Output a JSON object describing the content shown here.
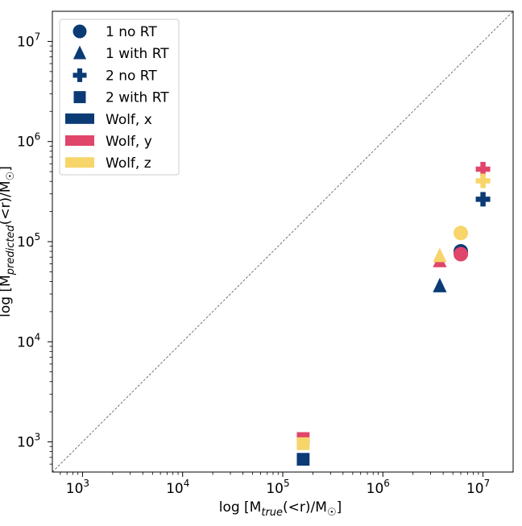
{
  "chart_data": {
    "type": "scatter",
    "xscale": "log",
    "yscale": "log",
    "xlim": [
      500,
      20000000
    ],
    "ylim": [
      500,
      20000000
    ],
    "grid": false,
    "legend_position": "top-left",
    "x_ticks": [
      {
        "value": 1000,
        "base": "10",
        "exp": "3"
      },
      {
        "value": 10000,
        "base": "10",
        "exp": "4"
      },
      {
        "value": 100000,
        "base": "10",
        "exp": "5"
      },
      {
        "value": 1000000,
        "base": "10",
        "exp": "6"
      },
      {
        "value": 10000000,
        "base": "10",
        "exp": "7"
      }
    ],
    "y_ticks": [
      {
        "value": 1000,
        "base": "10",
        "exp": "3"
      },
      {
        "value": 10000,
        "base": "10",
        "exp": "4"
      },
      {
        "value": 100000,
        "base": "10",
        "exp": "5"
      },
      {
        "value": 1000000,
        "base": "10",
        "exp": "6"
      },
      {
        "value": 10000000,
        "base": "10",
        "exp": "7"
      }
    ],
    "xlabel": {
      "pre": "log [M",
      "sub": "true",
      "post": "(<r)/M",
      "sun": "☉",
      "end": "]"
    },
    "ylabel": {
      "pre": "log [M",
      "sub": "predicted",
      "post": "(<r)/M",
      "sun": "☉",
      "end": "]"
    },
    "one_to_one_line": true,
    "colors": {
      "x": "#0b3b75",
      "y": "#e0456a",
      "z": "#f7d56a"
    },
    "legend": [
      {
        "label": "1 no RT",
        "marker": "circle",
        "color": "#0b3b75"
      },
      {
        "label": "1 with RT",
        "marker": "triangle",
        "color": "#0b3b75"
      },
      {
        "label": "2 no RT",
        "marker": "plus",
        "color": "#0b3b75"
      },
      {
        "label": "2 with RT",
        "marker": "square",
        "color": "#0b3b75"
      },
      {
        "label": "Wolf, x",
        "marker": "patch",
        "color": "#0b3b75"
      },
      {
        "label": "Wolf, y",
        "marker": "patch",
        "color": "#e0456a"
      },
      {
        "label": "Wolf, z",
        "marker": "patch",
        "color": "#f7d56a"
      }
    ],
    "points": [
      {
        "marker": "circle",
        "color": "#f7d56a",
        "x": 6000000,
        "y": 122000
      },
      {
        "marker": "circle",
        "color": "#0b3b75",
        "x": 6000000,
        "y": 80000
      },
      {
        "marker": "circle",
        "color": "#e0456a",
        "x": 6000000,
        "y": 75000
      },
      {
        "marker": "triangle",
        "color": "#e0456a",
        "x": 3700000,
        "y": 64000
      },
      {
        "marker": "triangle",
        "color": "#f7d56a",
        "x": 3700000,
        "y": 72000
      },
      {
        "marker": "triangle",
        "color": "#0b3b75",
        "x": 3700000,
        "y": 36000
      },
      {
        "marker": "plus",
        "color": "#e0456a",
        "x": 10000000,
        "y": 530000
      },
      {
        "marker": "plus",
        "color": "#f7d56a",
        "x": 10000000,
        "y": 405000
      },
      {
        "marker": "plus",
        "color": "#0b3b75",
        "x": 10000000,
        "y": 265000
      },
      {
        "marker": "square",
        "color": "#e0456a",
        "x": 160000,
        "y": 1080
      },
      {
        "marker": "square",
        "color": "#f7d56a",
        "x": 160000,
        "y": 960
      },
      {
        "marker": "square",
        "color": "#0b3b75",
        "x": 160000,
        "y": 670
      }
    ]
  }
}
